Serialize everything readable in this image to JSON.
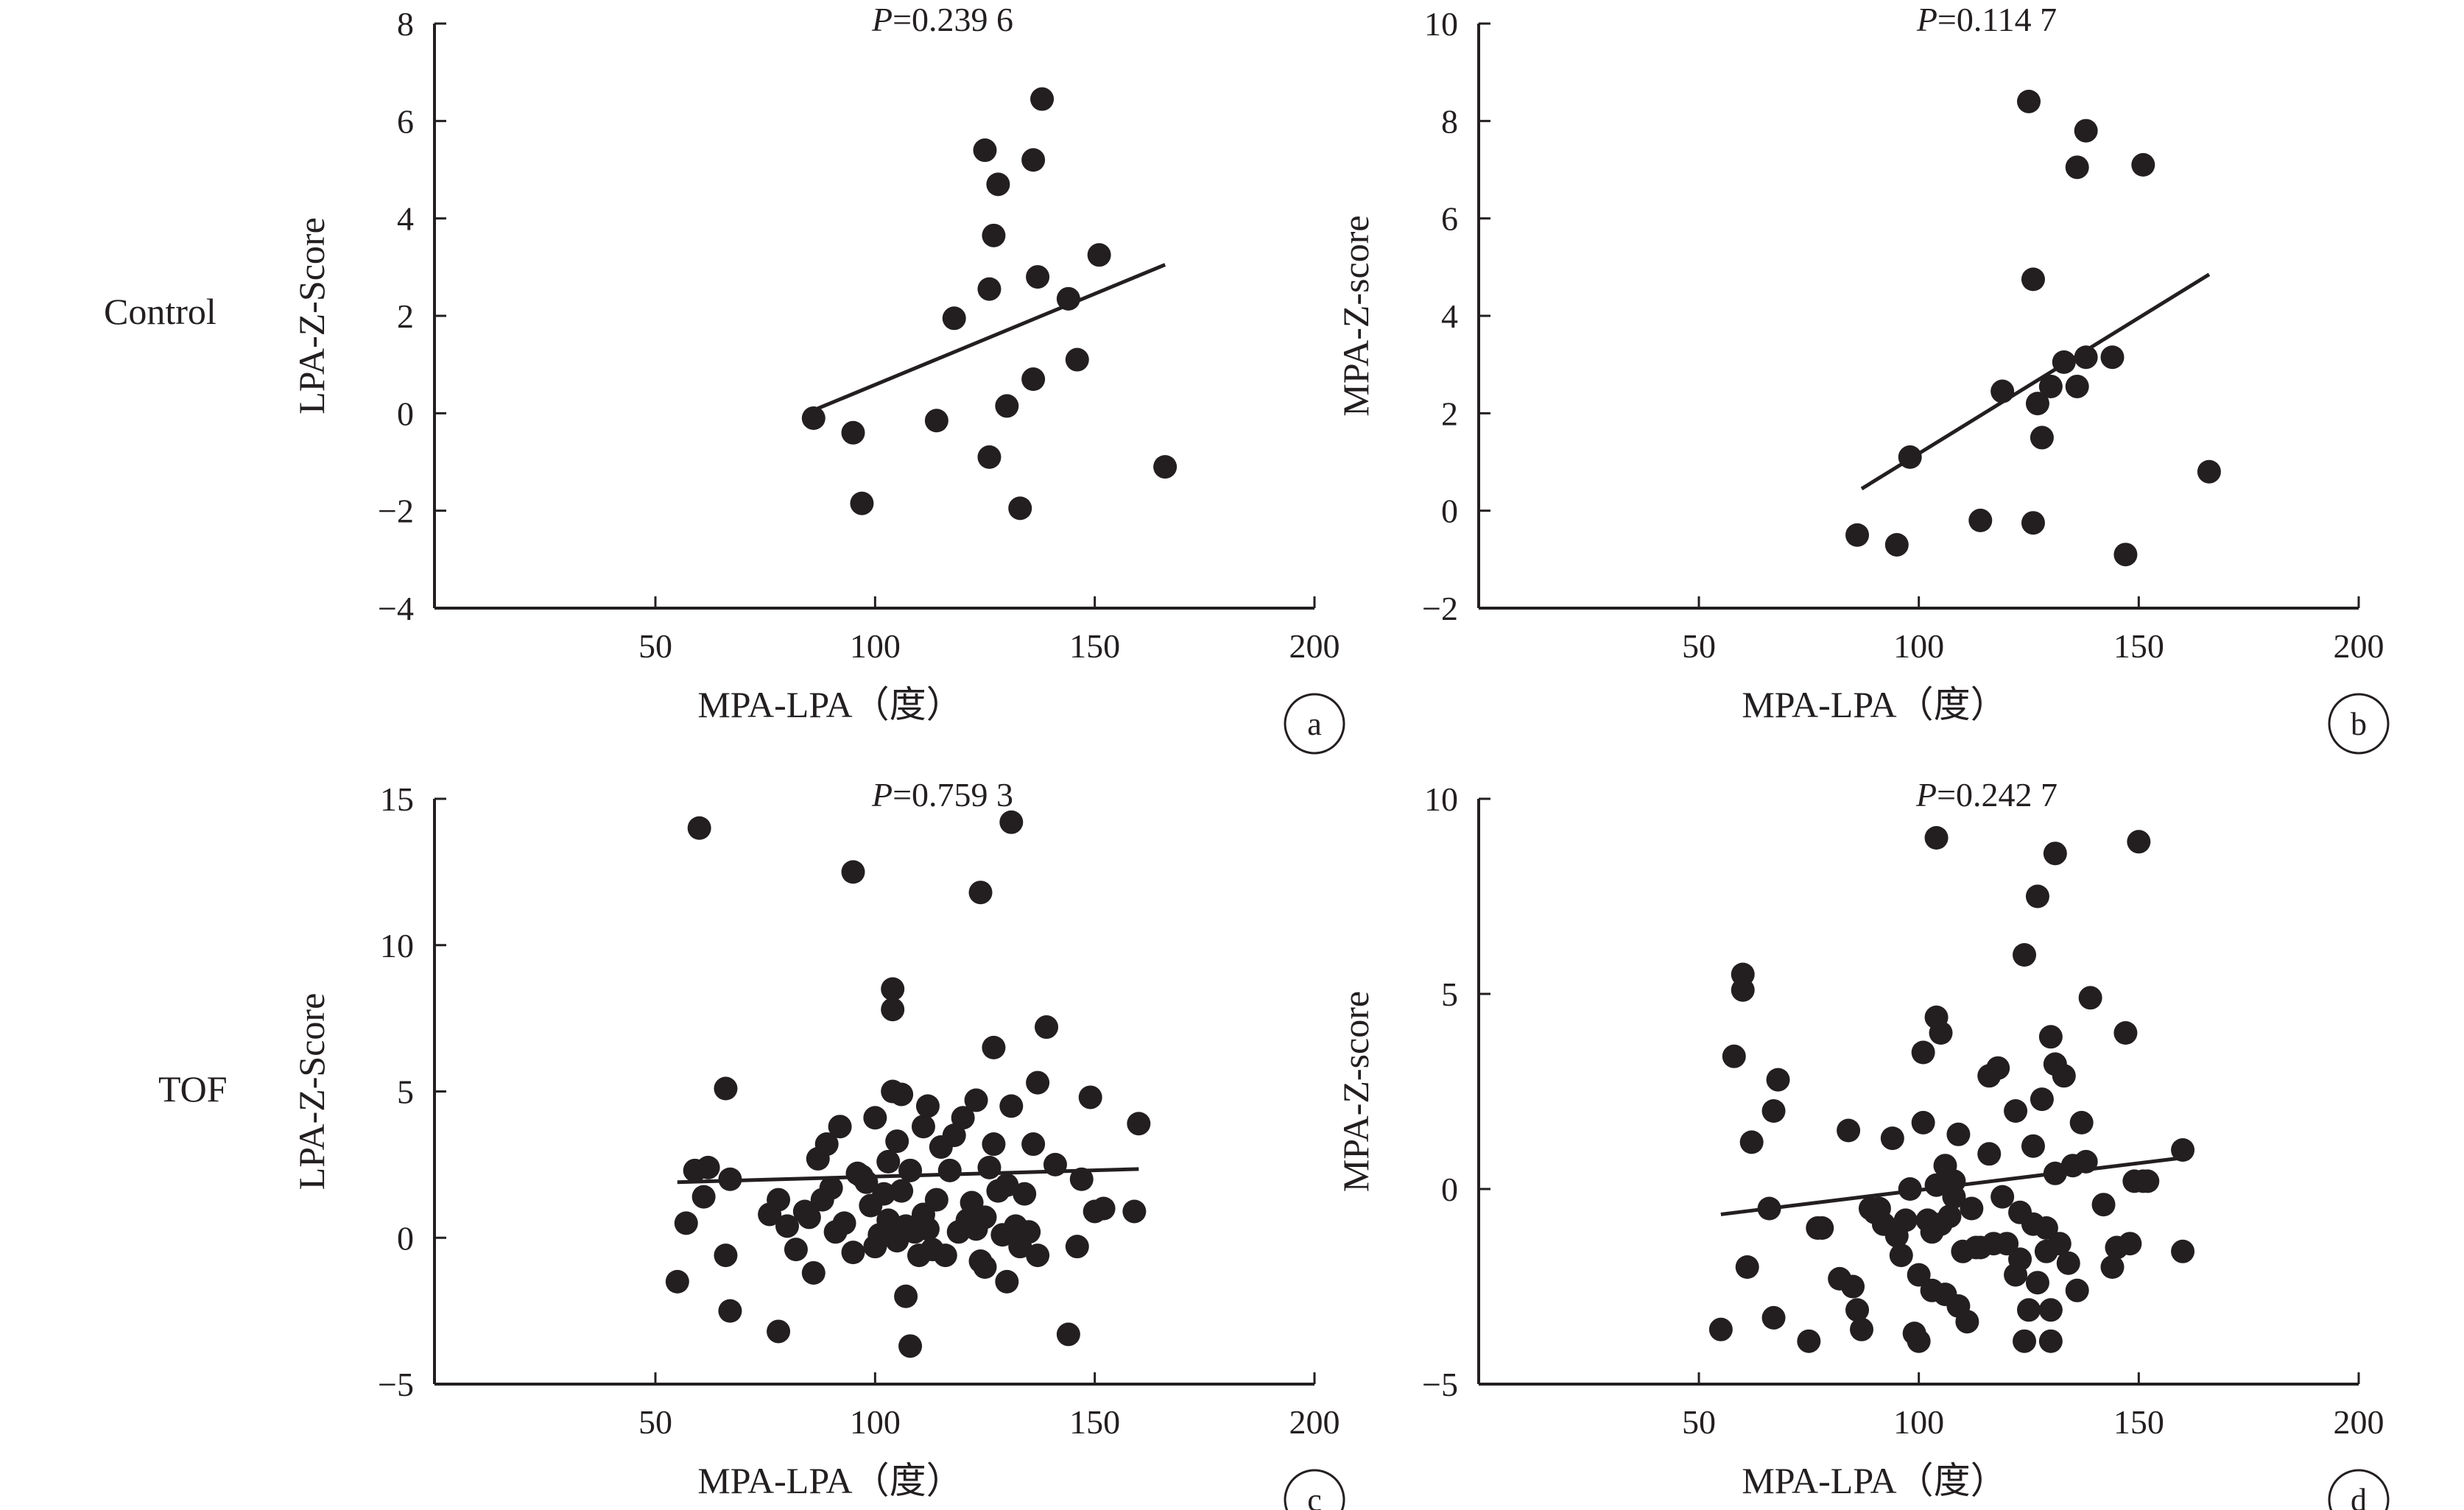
{
  "row_labels": [
    "Control",
    "TOF"
  ],
  "chart_data": [
    {
      "type": "scatter",
      "panel_label": "a",
      "row": "Control",
      "p_prefix": "P",
      "p_value": "=0.239 6",
      "xlabel": "MPA-LPA（度）",
      "ylabel": "LPA-Z-Score",
      "xlim": [
        0,
        200
      ],
      "ylim": [
        -4,
        8
      ],
      "xticks": [
        50,
        100,
        150,
        200
      ],
      "yticks": [
        -4,
        -2,
        0,
        2,
        4,
        6,
        8
      ],
      "trendline": [
        [
          87,
          0.1
        ],
        [
          166,
          3.05
        ]
      ],
      "points": [
        [
          86,
          -0.1
        ],
        [
          95,
          -0.4
        ],
        [
          97,
          -1.85
        ],
        [
          114,
          -0.15
        ],
        [
          118,
          1.95
        ],
        [
          125,
          5.4
        ],
        [
          126,
          2.55
        ],
        [
          126,
          -0.9
        ],
        [
          127,
          3.65
        ],
        [
          128,
          4.7
        ],
        [
          130,
          0.15
        ],
        [
          133,
          -1.95
        ],
        [
          136,
          5.2
        ],
        [
          136,
          0.7
        ],
        [
          137,
          2.8
        ],
        [
          138,
          6.45
        ],
        [
          144,
          2.35
        ],
        [
          146,
          1.1
        ],
        [
          151,
          3.25
        ],
        [
          166,
          -1.1
        ]
      ]
    },
    {
      "type": "scatter",
      "panel_label": "b",
      "row": "Control",
      "p_prefix": "P",
      "p_value": "=0.114 7",
      "xlabel": "MPA-LPA（度）",
      "ylabel": "MPA-Z-score",
      "xlim": [
        0,
        200
      ],
      "ylim": [
        -2,
        10
      ],
      "xticks": [
        50,
        100,
        150,
        200
      ],
      "yticks": [
        -2,
        0,
        2,
        4,
        6,
        8,
        10
      ],
      "trendline": [
        [
          87,
          0.45
        ],
        [
          166,
          4.85
        ]
      ],
      "points": [
        [
          86,
          -0.5
        ],
        [
          95,
          -0.7
        ],
        [
          98,
          1.1
        ],
        [
          114,
          -0.2
        ],
        [
          119,
          2.45
        ],
        [
          125,
          8.4
        ],
        [
          126,
          4.75
        ],
        [
          126,
          -0.25
        ],
        [
          127,
          2.2
        ],
        [
          128,
          1.5
        ],
        [
          130,
          2.55
        ],
        [
          133,
          3.05
        ],
        [
          136,
          2.55
        ],
        [
          136,
          7.05
        ],
        [
          138,
          3.15
        ],
        [
          138,
          7.8
        ],
        [
          144,
          3.15
        ],
        [
          147,
          -0.9
        ],
        [
          151,
          7.1
        ],
        [
          166,
          0.8
        ]
      ]
    },
    {
      "type": "scatter",
      "panel_label": "c",
      "row": "TOF",
      "p_prefix": "P",
      "p_value": "=0.759 3",
      "xlabel": "MPA-LPA（度）",
      "ylabel": "LPA-Z-Score",
      "xlim": [
        0,
        200
      ],
      "ylim": [
        -5,
        15
      ],
      "xticks": [
        50,
        100,
        150,
        200
      ],
      "yticks": [
        -5,
        0,
        5,
        10,
        15
      ],
      "trendline": [
        [
          55,
          1.9
        ],
        [
          160,
          2.35
        ]
      ],
      "points": [
        [
          55,
          -1.5
        ],
        [
          57,
          0.5
        ],
        [
          59,
          2.3
        ],
        [
          60,
          14.0
        ],
        [
          61,
          1.4
        ],
        [
          62,
          2.4
        ],
        [
          66,
          -0.6
        ],
        [
          66,
          5.1
        ],
        [
          67,
          -2.5
        ],
        [
          67,
          2.0
        ],
        [
          76,
          0.8
        ],
        [
          78,
          -3.2
        ],
        [
          78,
          1.3
        ],
        [
          80,
          0.4
        ],
        [
          82,
          -0.4
        ],
        [
          84,
          0.9
        ],
        [
          85,
          0.7
        ],
        [
          86,
          -1.2
        ],
        [
          87,
          2.7
        ],
        [
          88,
          1.3
        ],
        [
          89,
          3.2
        ],
        [
          90,
          1.7
        ],
        [
          91,
          0.2
        ],
        [
          92,
          3.8
        ],
        [
          93,
          0.5
        ],
        [
          95,
          -0.5
        ],
        [
          95,
          12.5
        ],
        [
          96,
          2.2
        ],
        [
          97,
          2.1
        ],
        [
          98,
          1.9
        ],
        [
          99,
          1.1
        ],
        [
          100,
          -0.3
        ],
        [
          100,
          4.1
        ],
        [
          101,
          0.1
        ],
        [
          102,
          1.5
        ],
        [
          103,
          2.6
        ],
        [
          103,
          0.6
        ],
        [
          104,
          5.0
        ],
        [
          104,
          8.5
        ],
        [
          104,
          7.8
        ],
        [
          105,
          3.3
        ],
        [
          105,
          -0.1
        ],
        [
          106,
          1.6
        ],
        [
          106,
          4.9
        ],
        [
          107,
          -2.0
        ],
        [
          107,
          0.4
        ],
        [
          108,
          -3.7
        ],
        [
          108,
          2.3
        ],
        [
          109,
          0.2
        ],
        [
          110,
          -0.6
        ],
        [
          111,
          3.8
        ],
        [
          111,
          0.8
        ],
        [
          112,
          0.3
        ],
        [
          112,
          4.5
        ],
        [
          113,
          -0.4
        ],
        [
          114,
          1.3
        ],
        [
          115,
          3.1
        ],
        [
          116,
          -0.6
        ],
        [
          117,
          2.3
        ],
        [
          118,
          3.5
        ],
        [
          119,
          0.2
        ],
        [
          120,
          4.1
        ],
        [
          121,
          0.6
        ],
        [
          122,
          1.2
        ],
        [
          123,
          4.7
        ],
        [
          123,
          0.3
        ],
        [
          124,
          11.8
        ],
        [
          124,
          -0.8
        ],
        [
          125,
          -1.0
        ],
        [
          125,
          0.7
        ],
        [
          126,
          2.4
        ],
        [
          127,
          3.2
        ],
        [
          127,
          6.5
        ],
        [
          128,
          1.6
        ],
        [
          129,
          0.1
        ],
        [
          130,
          -1.5
        ],
        [
          130,
          1.8
        ],
        [
          131,
          14.2
        ],
        [
          131,
          4.5
        ],
        [
          132,
          0.4
        ],
        [
          133,
          -0.3
        ],
        [
          134,
          1.5
        ],
        [
          135,
          0.2
        ],
        [
          136,
          3.2
        ],
        [
          137,
          -0.6
        ],
        [
          137,
          5.3
        ],
        [
          139,
          7.2
        ],
        [
          141,
          2.5
        ],
        [
          144,
          -3.3
        ],
        [
          146,
          -0.3
        ],
        [
          147,
          2.0
        ],
        [
          149,
          4.8
        ],
        [
          150,
          0.9
        ],
        [
          152,
          1.0
        ],
        [
          159,
          0.9
        ],
        [
          160,
          3.9
        ]
      ]
    },
    {
      "type": "scatter",
      "panel_label": "d",
      "row": "TOF",
      "p_prefix": "P",
      "p_value": "=0.242 7",
      "xlabel": "MPA-LPA（度）",
      "ylabel": "MPA-Z-score",
      "xlim": [
        0,
        200
      ],
      "ylim": [
        -5,
        10
      ],
      "xticks": [
        50,
        100,
        150,
        200
      ],
      "yticks": [
        -5,
        0,
        5,
        10
      ],
      "trendline": [
        [
          55,
          -0.65
        ],
        [
          160,
          0.8
        ]
      ],
      "points": [
        [
          55,
          -3.6
        ],
        [
          58,
          3.4
        ],
        [
          60,
          5.5
        ],
        [
          60,
          5.1
        ],
        [
          61,
          -2.0
        ],
        [
          62,
          1.2
        ],
        [
          66,
          -0.5
        ],
        [
          67,
          2.0
        ],
        [
          67,
          -3.3
        ],
        [
          68,
          2.8
        ],
        [
          75,
          -3.9
        ],
        [
          77,
          -1.0
        ],
        [
          78,
          -1.0
        ],
        [
          82,
          -2.3
        ],
        [
          84,
          1.5
        ],
        [
          85,
          -2.5
        ],
        [
          86,
          -3.1
        ],
        [
          87,
          -3.6
        ],
        [
          89,
          -0.5
        ],
        [
          90,
          -0.6
        ],
        [
          91,
          -0.5
        ],
        [
          92,
          -0.9
        ],
        [
          94,
          1.3
        ],
        [
          95,
          -1.2
        ],
        [
          96,
          -1.7
        ],
        [
          97,
          -0.8
        ],
        [
          98,
          0.0
        ],
        [
          99,
          -3.7
        ],
        [
          100,
          -3.9
        ],
        [
          100,
          -2.2
        ],
        [
          101,
          1.7
        ],
        [
          101,
          3.5
        ],
        [
          102,
          -0.8
        ],
        [
          103,
          -1.1
        ],
        [
          103,
          -2.6
        ],
        [
          104,
          9.0
        ],
        [
          104,
          4.4
        ],
        [
          104,
          0.1
        ],
        [
          105,
          -0.9
        ],
        [
          105,
          4.0
        ],
        [
          106,
          0.6
        ],
        [
          106,
          -2.7
        ],
        [
          107,
          -0.7
        ],
        [
          108,
          0.2
        ],
        [
          108,
          -0.2
        ],
        [
          109,
          -3.0
        ],
        [
          109,
          1.4
        ],
        [
          110,
          -1.6
        ],
        [
          111,
          -3.4
        ],
        [
          112,
          -0.5
        ],
        [
          113,
          -1.5
        ],
        [
          114,
          -1.5
        ],
        [
          116,
          2.9
        ],
        [
          116,
          0.9
        ],
        [
          117,
          -1.4
        ],
        [
          118,
          3.1
        ],
        [
          119,
          -0.2
        ],
        [
          120,
          -1.4
        ],
        [
          122,
          2.0
        ],
        [
          122,
          -2.2
        ],
        [
          123,
          -0.6
        ],
        [
          123,
          -1.8
        ],
        [
          124,
          -3.9
        ],
        [
          124,
          6.0
        ],
        [
          125,
          -3.1
        ],
        [
          126,
          -0.9
        ],
        [
          126,
          1.1
        ],
        [
          127,
          7.5
        ],
        [
          127,
          -2.4
        ],
        [
          128,
          2.3
        ],
        [
          129,
          -1.0
        ],
        [
          129,
          -1.6
        ],
        [
          130,
          -3.9
        ],
        [
          130,
          3.9
        ],
        [
          130,
          -3.1
        ],
        [
          131,
          8.6
        ],
        [
          131,
          0.4
        ],
        [
          131,
          3.2
        ],
        [
          132,
          -1.4
        ],
        [
          133,
          2.9
        ],
        [
          134,
          -1.9
        ],
        [
          135,
          0.6
        ],
        [
          136,
          -2.6
        ],
        [
          137,
          1.7
        ],
        [
          138,
          0.7
        ],
        [
          139,
          4.9
        ],
        [
          142,
          -0.4
        ],
        [
          144,
          -2.0
        ],
        [
          145,
          -1.5
        ],
        [
          147,
          4.0
        ],
        [
          148,
          -1.4
        ],
        [
          149,
          0.2
        ],
        [
          150,
          8.9
        ],
        [
          151,
          0.2
        ],
        [
          152,
          0.2
        ],
        [
          160,
          -1.6
        ],
        [
          160,
          1.0
        ]
      ]
    }
  ]
}
